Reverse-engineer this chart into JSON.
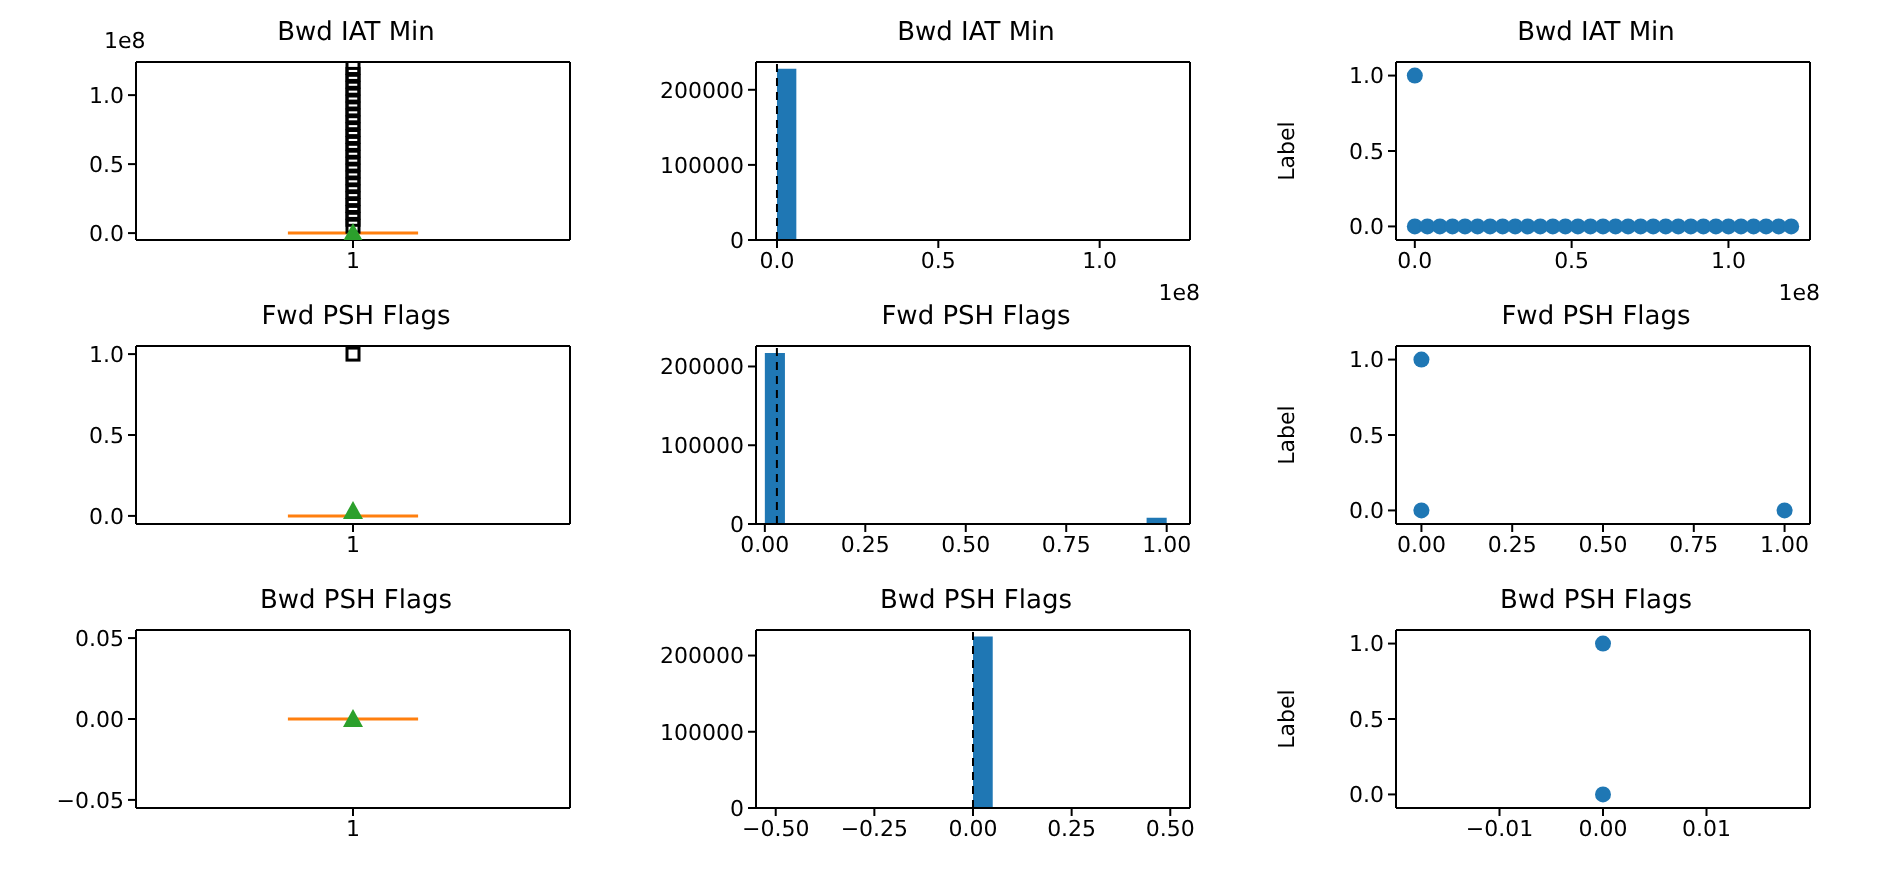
{
  "chart_data": [
    {
      "type": "box",
      "title": "Bwd IAT Min",
      "categories": [
        "1"
      ],
      "ylim": [
        -0.05,
        1.24
      ],
      "yticks": [
        {
          "value": 0,
          "label": "0.0"
        },
        {
          "value": 0.5,
          "label": "0.5"
        },
        {
          "value": 1,
          "label": "1.0"
        }
      ],
      "annotations": [
        "1e8"
      ],
      "boxes": [
        {
          "low": 0,
          "q1": 0,
          "median": 0,
          "q3": 0,
          "high": 0,
          "mean": 0,
          "outliers": [
            0.05,
            0.1,
            0.15,
            0.2,
            0.25,
            0.3,
            0.35,
            0.4,
            0.45,
            0.5,
            0.55,
            0.6,
            0.65,
            0.7,
            0.75,
            0.8,
            0.85,
            0.9,
            0.95,
            1.0,
            1.05,
            1.1,
            1.15,
            1.2
          ]
        }
      ]
    },
    {
      "type": "histogram",
      "title": "Bwd IAT Min",
      "color": "#1f77b4",
      "xlim": [
        -0.065,
        1.28
      ],
      "xticks": [
        {
          "value": 0,
          "label": "0.0"
        },
        {
          "value": 0.5,
          "label": "0.5"
        },
        {
          "value": 1,
          "label": "1.0"
        }
      ],
      "ylim": [
        0,
        237000
      ],
      "yticks": [
        0,
        100000,
        200000
      ],
      "annotations": [
        "1e8"
      ],
      "bins": [
        0,
        0.06,
        0.12,
        0.18,
        0.24,
        0.3,
        0.36,
        0.42,
        0.48,
        0.54,
        0.6,
        0.66,
        0.72,
        0.78,
        0.84,
        0.9,
        0.96,
        1.02,
        1.08,
        1.14,
        1.2
      ],
      "values": [
        228000,
        0,
        0,
        0,
        0,
        0,
        0,
        0,
        0,
        0,
        0,
        0,
        0,
        0,
        0,
        0,
        0,
        0,
        0,
        0
      ],
      "ref_lines": [
        {
          "axis": "x",
          "value": 0,
          "color": "#000000",
          "line_style": "dashed"
        }
      ]
    },
    {
      "type": "scatter",
      "title": "Bwd IAT Min",
      "ylabel": "Label",
      "color": "#1f77b4",
      "marker": "circle",
      "xlim": [
        -0.06,
        1.26
      ],
      "xticks": [
        {
          "value": 0,
          "label": "0.0"
        },
        {
          "value": 0.5,
          "label": "0.5"
        },
        {
          "value": 1,
          "label": "1.0"
        }
      ],
      "ylim": [
        -0.09,
        1.09
      ],
      "yticks": [
        {
          "value": 0,
          "label": "0.0"
        },
        {
          "value": 0.5,
          "label": "0.5"
        },
        {
          "value": 1,
          "label": "1.0"
        }
      ],
      "annotations": [
        "1e8"
      ],
      "x": [
        0,
        0,
        0.04,
        0.08,
        0.12,
        0.16,
        0.2,
        0.24,
        0.28,
        0.32,
        0.36,
        0.4,
        0.44,
        0.48,
        0.52,
        0.56,
        0.6,
        0.64,
        0.68,
        0.72,
        0.76,
        0.8,
        0.84,
        0.88,
        0.92,
        0.96,
        1.0,
        1.04,
        1.08,
        1.12,
        1.16,
        1.2
      ],
      "values": [
        1,
        0,
        0,
        0,
        0,
        0,
        0,
        0,
        0,
        0,
        0,
        0,
        0,
        0,
        0,
        0,
        0,
        0,
        0,
        0,
        0,
        0,
        0,
        0,
        0,
        0,
        0,
        0,
        0,
        0,
        0,
        0
      ]
    },
    {
      "type": "box",
      "title": "Fwd PSH Flags",
      "categories": [
        "1"
      ],
      "ylim": [
        -0.05,
        1.05
      ],
      "yticks": [
        {
          "value": 0,
          "label": "0.0"
        },
        {
          "value": 0.5,
          "label": "0.5"
        },
        {
          "value": 1,
          "label": "1.0"
        }
      ],
      "boxes": [
        {
          "low": 0,
          "q1": 0,
          "median": 0,
          "q3": 0,
          "high": 0,
          "mean": 0.03,
          "outliers": [
            1
          ]
        }
      ]
    },
    {
      "type": "histogram",
      "title": "Fwd PSH Flags",
      "color": "#1f77b4",
      "xlim": [
        -0.022,
        1.058
      ],
      "xticks": [
        {
          "value": 0,
          "label": "0.00"
        },
        {
          "value": 0.25,
          "label": "0.25"
        },
        {
          "value": 0.5,
          "label": "0.50"
        },
        {
          "value": 0.75,
          "label": "0.75"
        },
        {
          "value": 1,
          "label": "1.00"
        }
      ],
      "ylim": [
        0,
        226000
      ],
      "yticks": [
        0,
        100000,
        200000
      ],
      "bins": [
        0,
        0.05,
        0.1,
        0.15,
        0.2,
        0.25,
        0.3,
        0.35,
        0.4,
        0.45,
        0.5,
        0.55,
        0.6,
        0.65,
        0.7,
        0.75,
        0.8,
        0.85,
        0.9,
        0.95,
        1.0
      ],
      "values": [
        217000,
        0,
        0,
        0,
        0,
        0,
        0,
        0,
        0,
        0,
        0,
        0,
        0,
        0,
        0,
        0,
        0,
        0,
        0,
        8000
      ],
      "ref_lines": [
        {
          "axis": "x",
          "value": 0.03,
          "color": "#000000",
          "line_style": "dashed"
        }
      ]
    },
    {
      "type": "scatter",
      "title": "Fwd PSH Flags",
      "ylabel": "Label",
      "color": "#1f77b4",
      "marker": "circle",
      "xlim": [
        -0.07,
        1.07
      ],
      "xticks": [
        {
          "value": 0,
          "label": "0.00"
        },
        {
          "value": 0.25,
          "label": "0.25"
        },
        {
          "value": 0.5,
          "label": "0.50"
        },
        {
          "value": 0.75,
          "label": "0.75"
        },
        {
          "value": 1,
          "label": "1.00"
        }
      ],
      "ylim": [
        -0.09,
        1.09
      ],
      "yticks": [
        {
          "value": 0,
          "label": "0.0"
        },
        {
          "value": 0.5,
          "label": "0.5"
        },
        {
          "value": 1,
          "label": "1.0"
        }
      ],
      "x": [
        0,
        0,
        1
      ],
      "values": [
        1,
        0,
        0
      ]
    },
    {
      "type": "box",
      "title": "Bwd PSH Flags",
      "categories": [
        "1"
      ],
      "ylim": [
        -0.055,
        0.055
      ],
      "yticks": [
        {
          "value": -0.05,
          "label": "−0.05"
        },
        {
          "value": 0,
          "label": "0.00"
        },
        {
          "value": 0.05,
          "label": "0.05"
        }
      ],
      "boxes": [
        {
          "low": 0,
          "q1": 0,
          "median": 0,
          "q3": 0,
          "high": 0,
          "mean": 0
        }
      ]
    },
    {
      "type": "histogram",
      "title": "Bwd PSH Flags",
      "color": "#1f77b4",
      "xlim": [
        -0.55,
        0.55
      ],
      "xticks": [
        {
          "value": -0.5,
          "label": "−0.50"
        },
        {
          "value": -0.25,
          "label": "−0.25"
        },
        {
          "value": 0,
          "label": "0.00"
        },
        {
          "value": 0.25,
          "label": "0.25"
        },
        {
          "value": 0.5,
          "label": "0.50"
        }
      ],
      "ylim": [
        0,
        233500
      ],
      "yticks": [
        0,
        100000,
        200000
      ],
      "bins": [
        -0.5,
        -0.45,
        -0.4,
        -0.35,
        -0.3,
        -0.25,
        -0.2,
        -0.15,
        -0.1,
        -0.05,
        0,
        0.05,
        0.1,
        0.15,
        0.2,
        0.25,
        0.3,
        0.35,
        0.4,
        0.45,
        0.5
      ],
      "values": [
        0,
        0,
        0,
        0,
        0,
        0,
        0,
        0,
        0,
        0,
        225000,
        0,
        0,
        0,
        0,
        0,
        0,
        0,
        0,
        0
      ],
      "ref_lines": [
        {
          "axis": "x",
          "value": 0,
          "color": "#000000",
          "line_style": "dashed"
        }
      ]
    },
    {
      "type": "scatter",
      "title": "Bwd PSH Flags",
      "ylabel": "Label",
      "color": "#1f77b4",
      "marker": "circle",
      "xlim": [
        -0.02,
        0.02
      ],
      "xticks": [
        {
          "value": -0.01,
          "label": "−0.01"
        },
        {
          "value": 0,
          "label": "0.00"
        },
        {
          "value": 0.01,
          "label": "0.01"
        }
      ],
      "ylim": [
        -0.09,
        1.09
      ],
      "yticks": [
        {
          "value": 0,
          "label": "0.0"
        },
        {
          "value": 0.5,
          "label": "0.5"
        },
        {
          "value": 1,
          "label": "1.0"
        }
      ],
      "x": [
        0,
        0
      ],
      "values": [
        1,
        0
      ]
    }
  ]
}
